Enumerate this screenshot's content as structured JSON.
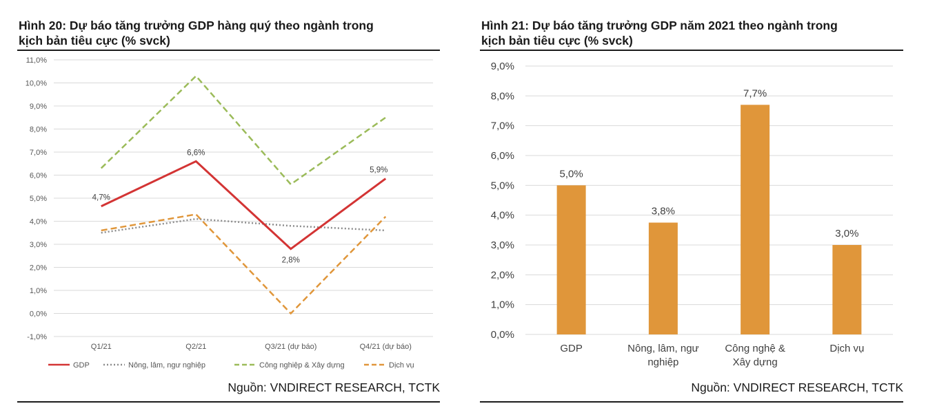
{
  "colors": {
    "gdp": "#d33434",
    "agri": "#8c8c8c",
    "industry": "#9bbb59",
    "services": "#e0963a",
    "bar": "#e0963a",
    "grid": "#d9d9d9"
  },
  "left": {
    "title_line1": "Hình 20: Dự báo tăng trưởng GDP hàng quý theo ngành trong",
    "title_line2": "kịch bản tiêu cực (% svck)",
    "source": "Nguồn: VNDIRECT RESEARCH, TCTK"
  },
  "right": {
    "title_line1": "Hình 21: Dự báo tăng trưởng GDP năm 2021 theo ngành trong",
    "title_line2": "kịch bản tiêu cực (% svck)",
    "source": "Nguồn: VNDIRECT RESEARCH, TCTK"
  },
  "chart_data": [
    {
      "type": "line",
      "x": [
        "Q1/21",
        "Q2/21",
        "Q3/21 (dự báo)",
        "Q4/21 (dự báo)"
      ],
      "ylim": [
        -1.0,
        11.0
      ],
      "yticks": [
        "-1,0%",
        "0,0%",
        "1,0%",
        "2,0%",
        "3,0%",
        "4,0%",
        "5,0%",
        "6,0%",
        "7,0%",
        "8,0%",
        "9,0%",
        "10,0%",
        "11,0%"
      ],
      "grid": true,
      "legend_position": "bottom",
      "series": [
        {
          "name": "GDP",
          "key": "gdp",
          "style": "solid",
          "values": [
            4.65,
            6.6,
            2.8,
            5.85
          ],
          "labels": [
            "4,7%",
            "6,6%",
            "2,8%",
            "5,9%"
          ]
        },
        {
          "name": "Nông, lâm, ngư nghiệp",
          "key": "agri",
          "style": "dotted",
          "values": [
            3.5,
            4.1,
            3.8,
            3.6
          ]
        },
        {
          "name": "Công nghiệp & Xây dựng",
          "key": "industry",
          "style": "dashed",
          "values": [
            6.3,
            10.3,
            5.6,
            8.5
          ]
        },
        {
          "name": "Dịch vụ",
          "key": "services",
          "style": "dashed",
          "values": [
            3.6,
            4.3,
            0.0,
            4.2
          ]
        }
      ]
    },
    {
      "type": "bar",
      "categories": [
        [
          "GDP"
        ],
        [
          "Nông, lâm, ngư",
          "nghiệp"
        ],
        [
          "Công nghệ &",
          "Xây dựng"
        ],
        [
          "Dịch vụ"
        ]
      ],
      "values": [
        5.0,
        3.75,
        7.7,
        3.0
      ],
      "labels": [
        "5,0%",
        "3,8%",
        "7,7%",
        "3,0%"
      ],
      "ylim": [
        0.0,
        9.0
      ],
      "yticks": [
        "0,0%",
        "1,0%",
        "2,0%",
        "3,0%",
        "4,0%",
        "5,0%",
        "6,0%",
        "7,0%",
        "8,0%",
        "9,0%"
      ],
      "grid": true
    }
  ]
}
